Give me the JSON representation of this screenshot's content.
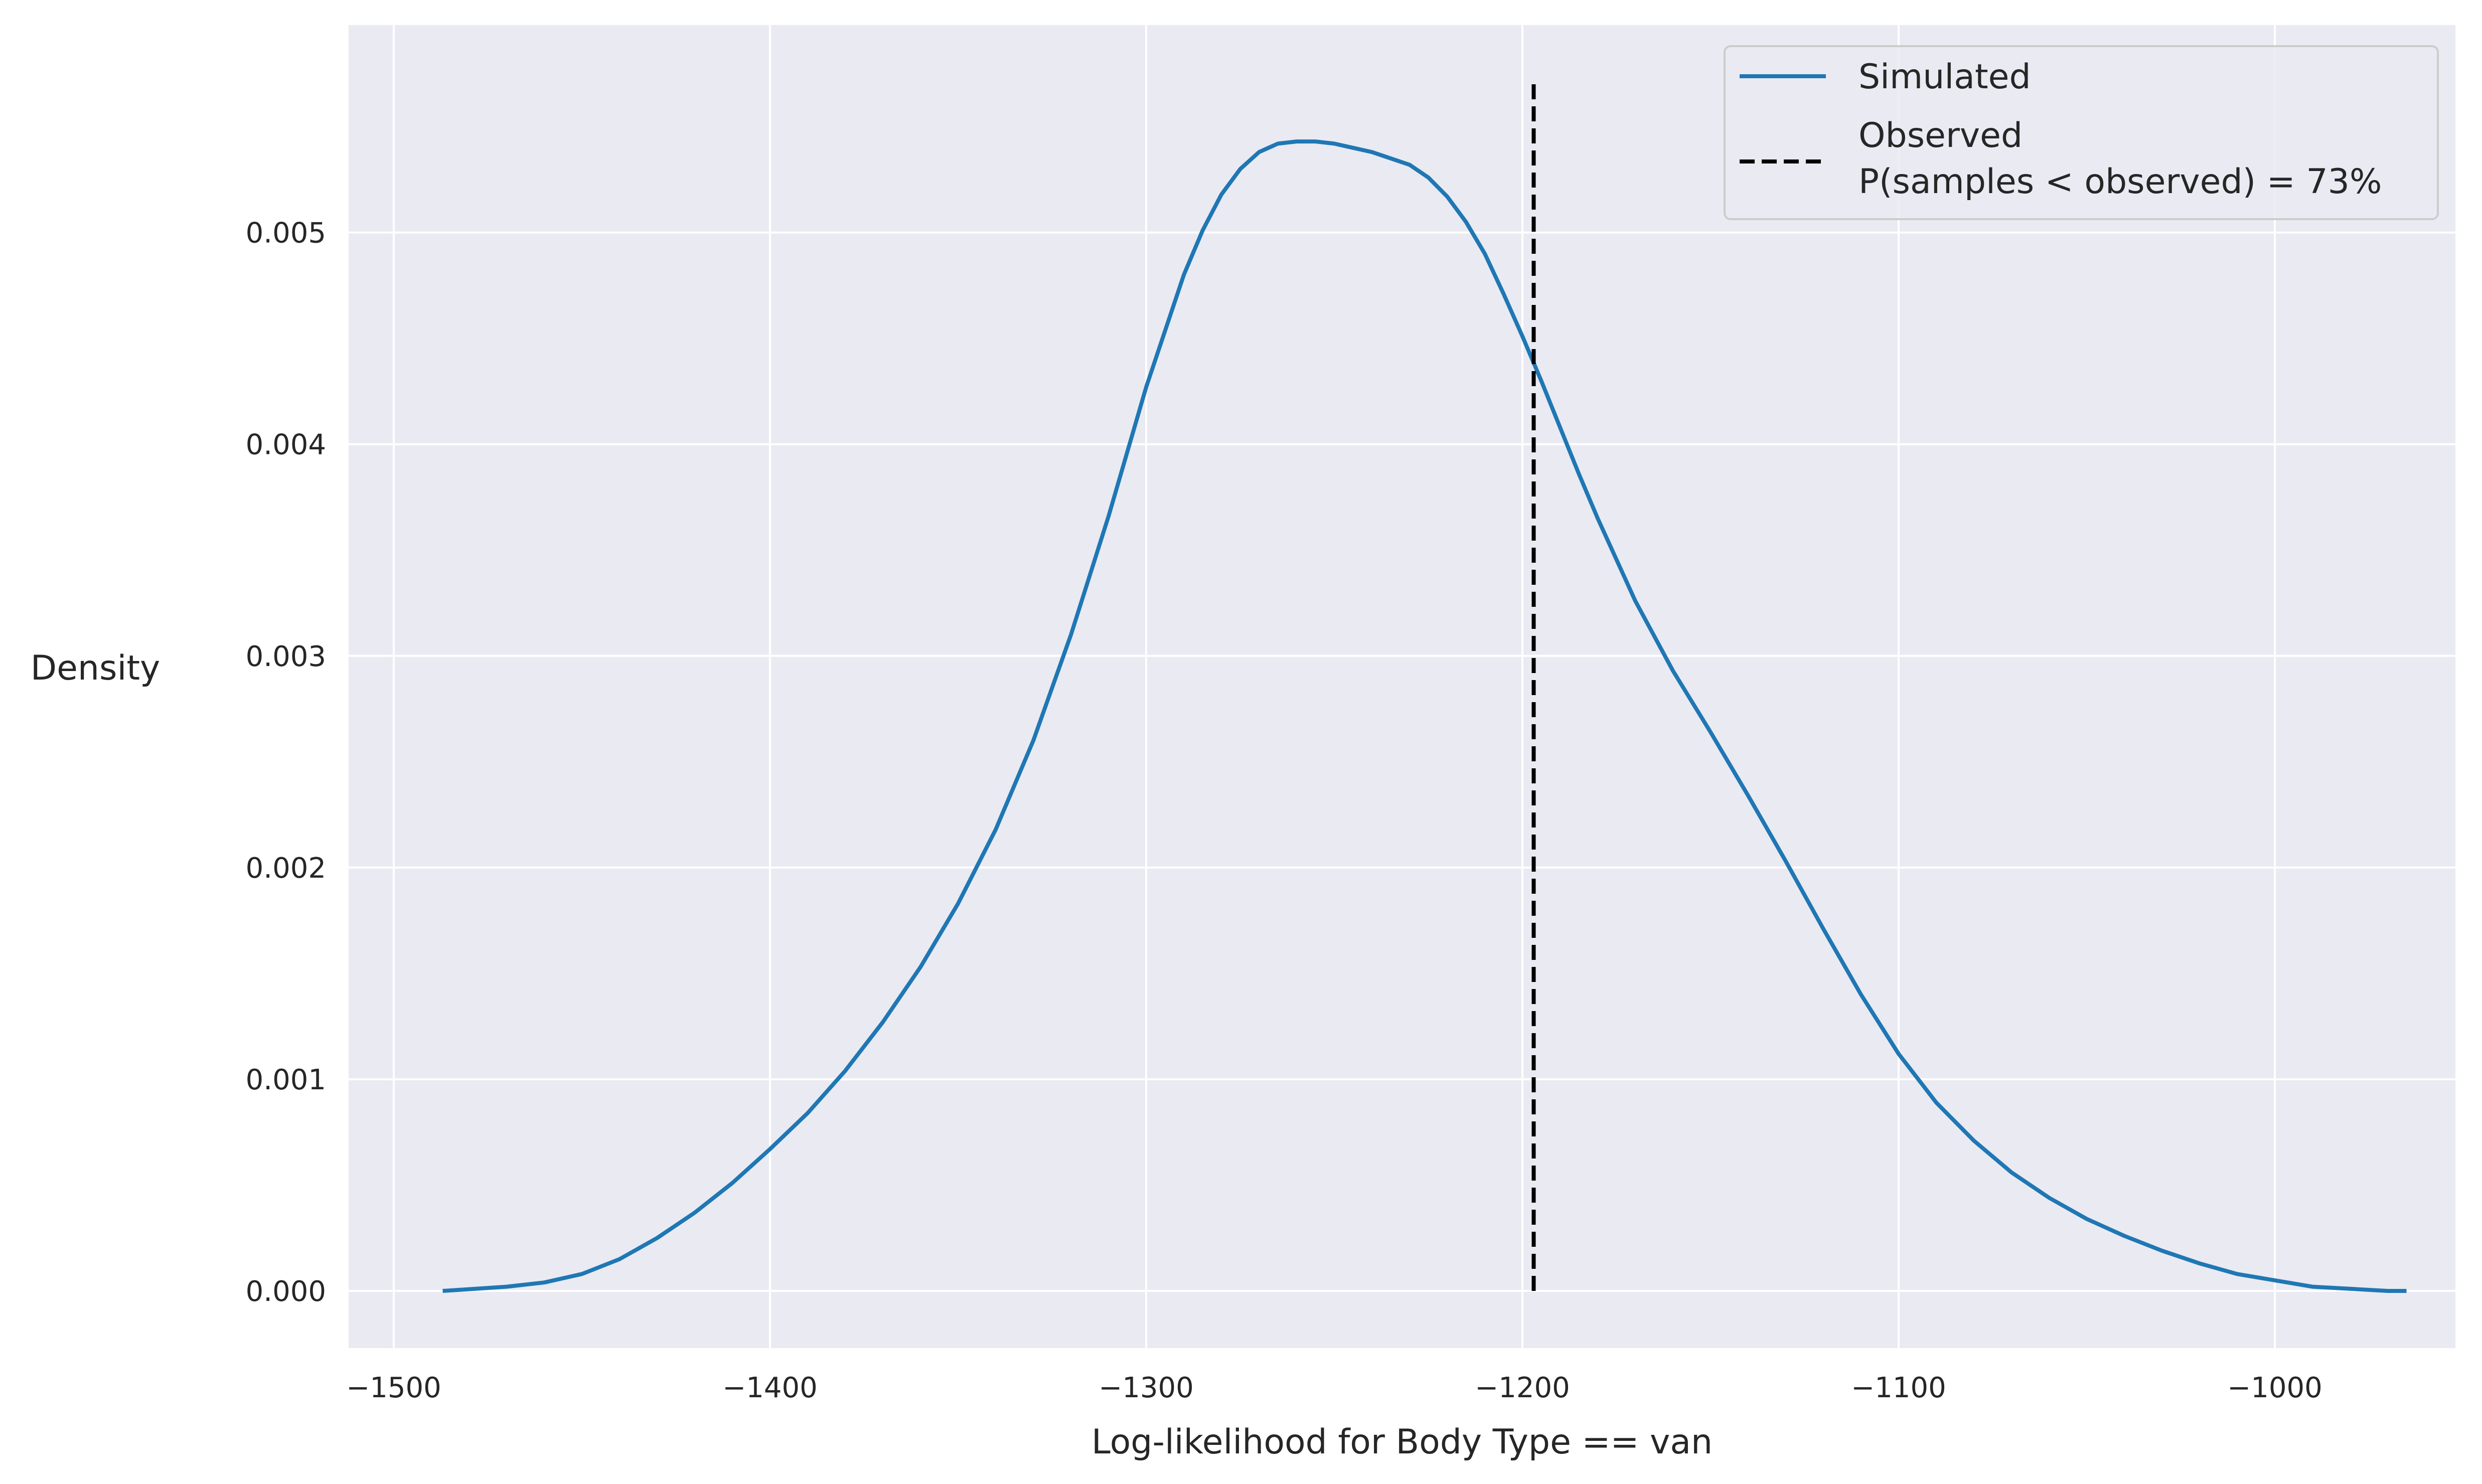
{
  "chart_data": {
    "type": "line",
    "title": "",
    "xlabel": "Log-likelihood for Body Type == van",
    "ylabel": "Density",
    "xlim": [
      -1512,
      -952
    ],
    "ylim": [
      -0.00027,
      0.00598
    ],
    "xticks": [
      -1500,
      -1400,
      -1300,
      -1200,
      -1100,
      -1000
    ],
    "xtick_labels": [
      "−1500",
      "−1400",
      "−1300",
      "−1200",
      "−1100",
      "−1000"
    ],
    "yticks": [
      0.0,
      0.001,
      0.002,
      0.003,
      0.004,
      0.005
    ],
    "ytick_labels": [
      "0.000",
      "0.001",
      "0.002",
      "0.003",
      "0.004",
      "0.005"
    ],
    "grid": true,
    "legend_position": "top-right",
    "series": [
      {
        "name": "Simulated",
        "style": "solid",
        "color": "#1f77b4",
        "x": [
          -1487,
          -1470,
          -1460,
          -1450,
          -1440,
          -1430,
          -1420,
          -1410,
          -1400,
          -1390,
          -1380,
          -1370,
          -1360,
          -1350,
          -1340,
          -1330,
          -1320,
          -1310,
          -1300,
          -1290,
          -1285,
          -1280,
          -1275,
          -1270,
          -1265,
          -1260,
          -1255,
          -1250,
          -1240,
          -1230,
          -1225,
          -1220,
          -1215,
          -1210,
          -1205,
          -1200,
          -1195,
          -1190,
          -1185,
          -1180,
          -1170,
          -1160,
          -1150,
          -1140,
          -1130,
          -1120,
          -1110,
          -1100,
          -1090,
          -1080,
          -1070,
          -1060,
          -1050,
          -1040,
          -1030,
          -1020,
          -1010,
          -1000,
          -990,
          -980,
          -970,
          -965
        ],
        "y": [
          0.0,
          2e-05,
          4e-05,
          8e-05,
          0.00015,
          0.00025,
          0.00037,
          0.00051,
          0.00067,
          0.00084,
          0.00104,
          0.00127,
          0.00153,
          0.00183,
          0.00218,
          0.0026,
          0.0031,
          0.00366,
          0.00427,
          0.0048,
          0.00501,
          0.00518,
          0.0053,
          0.00538,
          0.00542,
          0.00543,
          0.00543,
          0.00542,
          0.00538,
          0.00532,
          0.00526,
          0.00517,
          0.00505,
          0.0049,
          0.00471,
          0.00451,
          0.0043,
          0.00408,
          0.00386,
          0.00365,
          0.00326,
          0.00293,
          0.00264,
          0.00234,
          0.00203,
          0.00171,
          0.0014,
          0.00112,
          0.00089,
          0.00071,
          0.00056,
          0.00044,
          0.00034,
          0.00026,
          0.00019,
          0.00013,
          8e-05,
          5e-05,
          2e-05,
          1e-05,
          0.0,
          0.0
        ]
      },
      {
        "name": "Observed\nP(samples < observed) = 73%",
        "label_lines": [
          "Observed",
          "P(samples < observed) = 73%"
        ],
        "style": "dashed",
        "color": "#000000",
        "x": [
          -1197,
          -1197
        ],
        "y": [
          0.0,
          0.00572
        ]
      }
    ]
  },
  "colors": {
    "plot_background": "#eaeaf2",
    "grid": "#ffffff",
    "simulated": "#1f77b4",
    "observed": "#000000"
  }
}
